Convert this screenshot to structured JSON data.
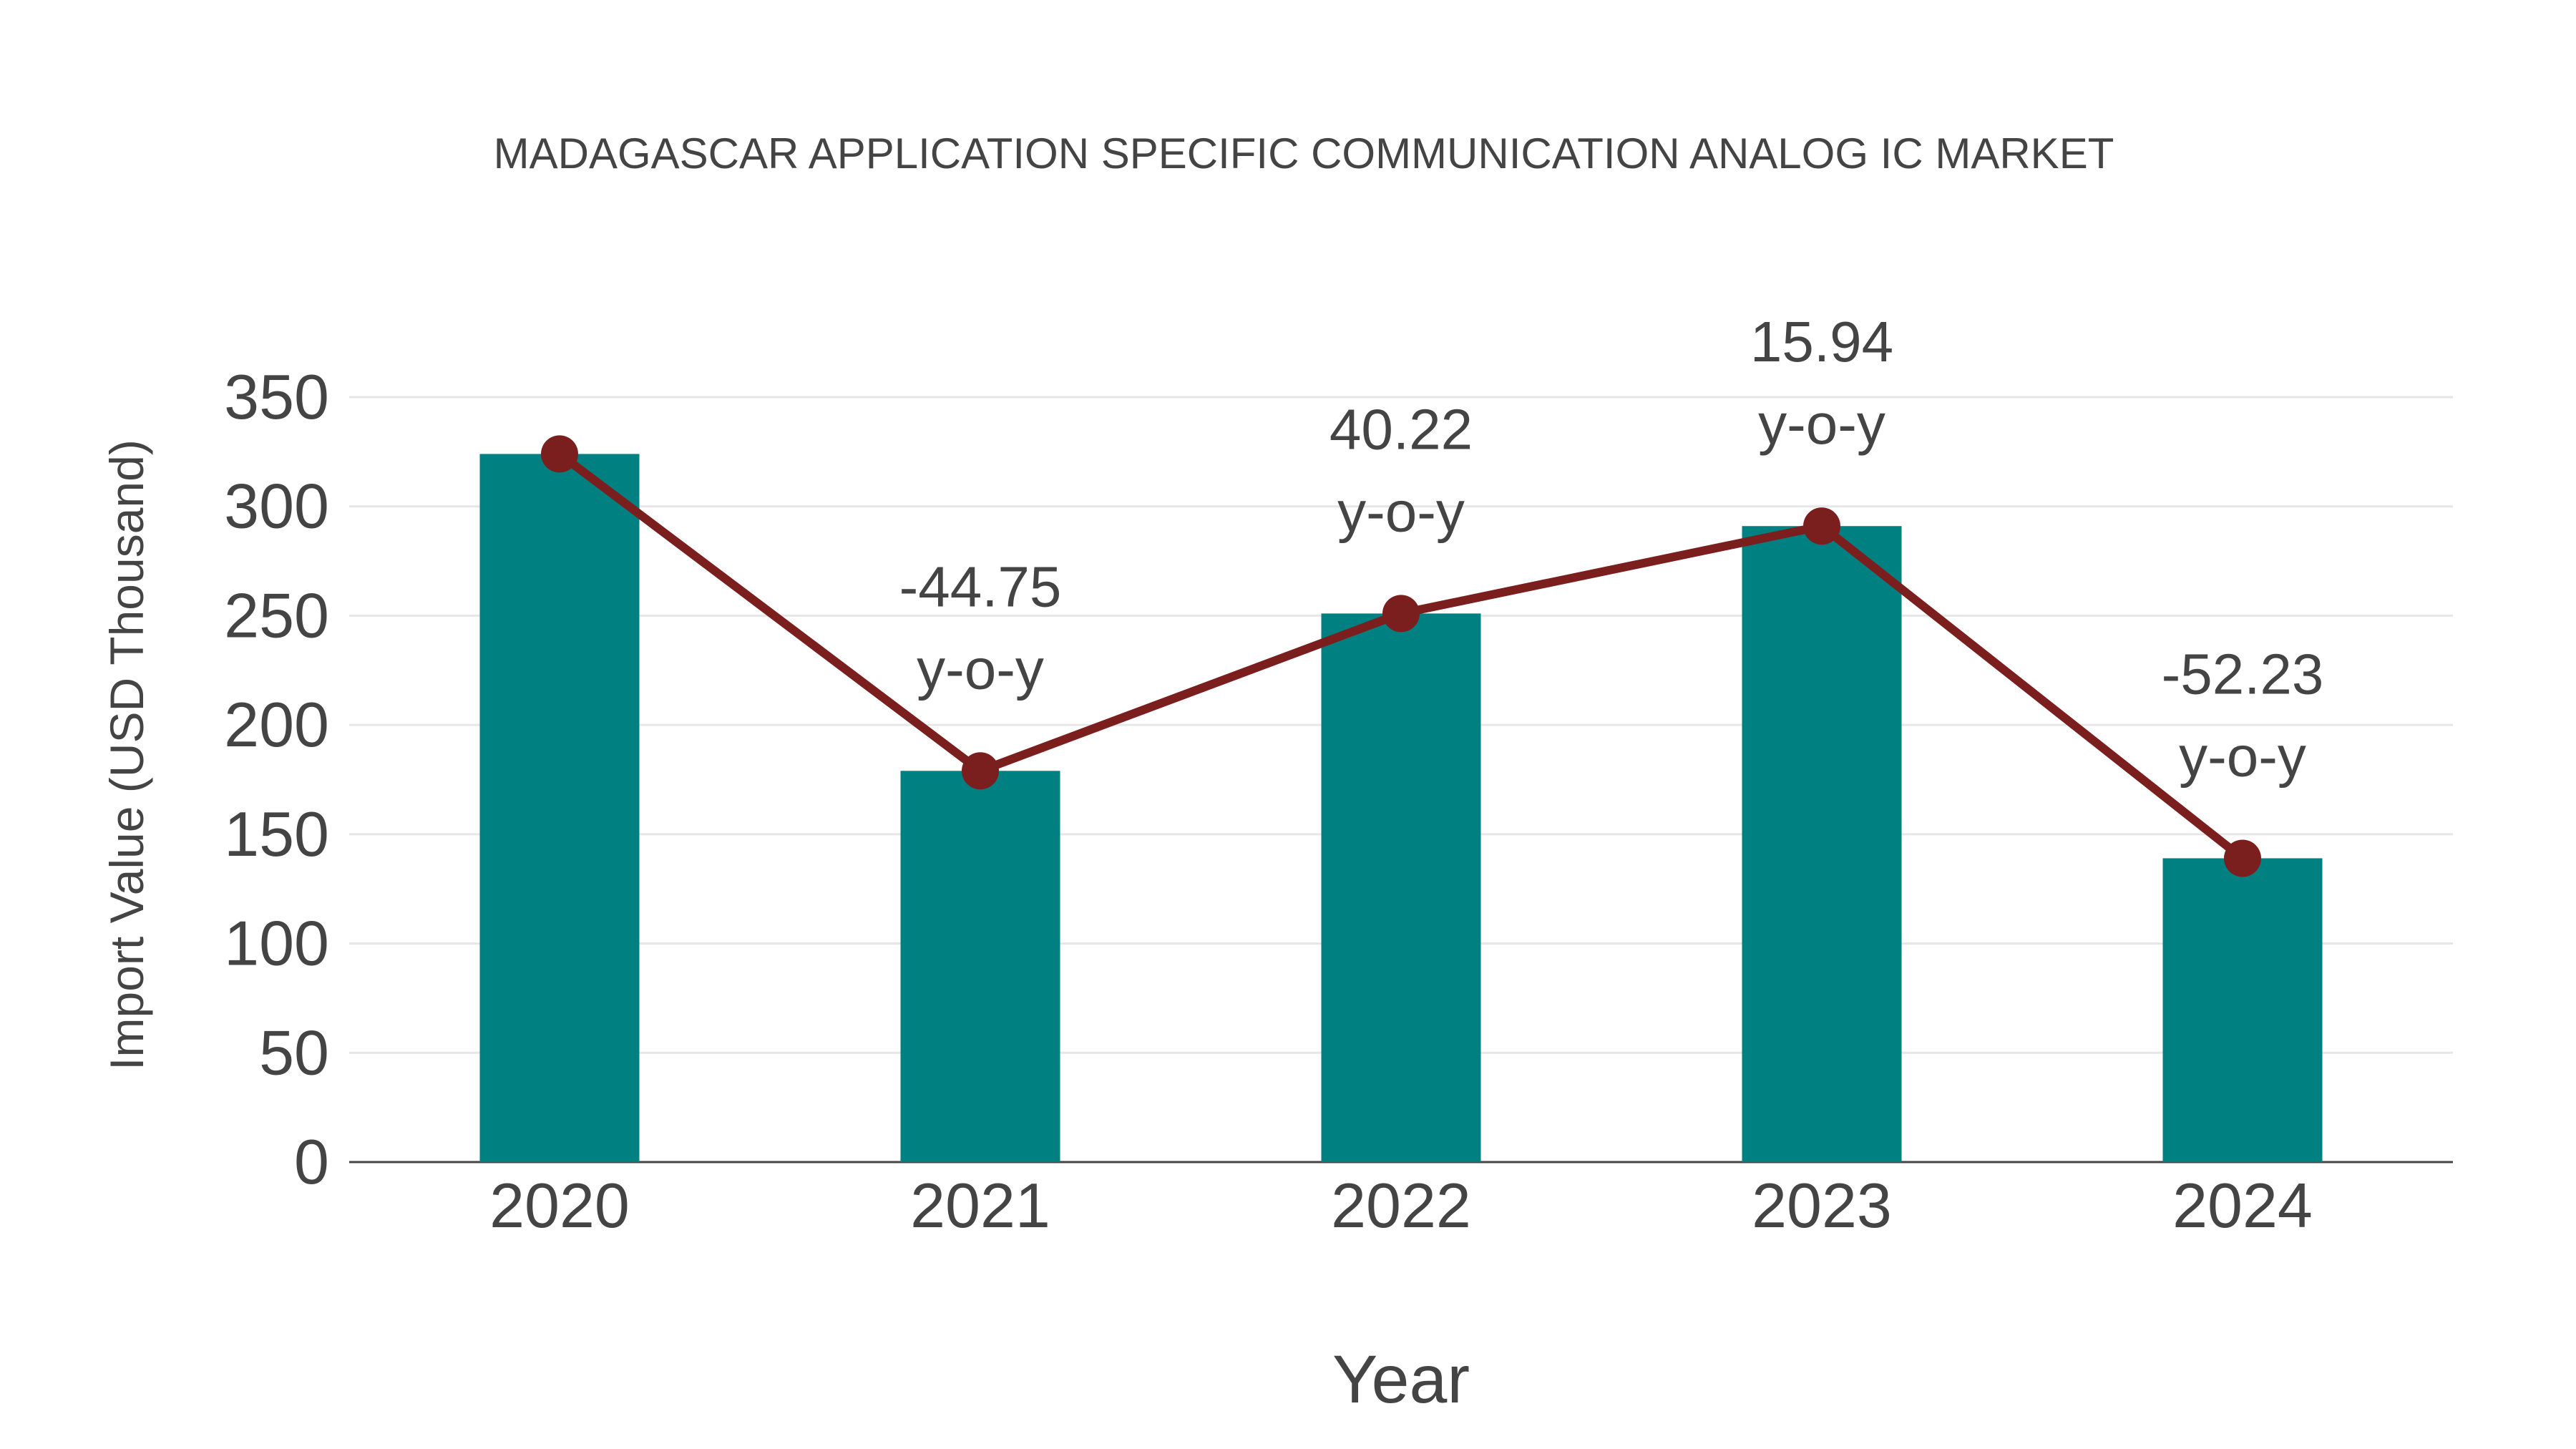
{
  "chart_data": {
    "type": "bar",
    "title": "MADAGASCAR APPLICATION SPECIFIC COMMUNICATION ANALOG IC MARKET",
    "xlabel": "Year",
    "ylabel": "Import Value (USD Thousand)",
    "categories": [
      "2020",
      "2021",
      "2022",
      "2023",
      "2024"
    ],
    "series": [
      {
        "name": "Import Value",
        "type": "bar",
        "values": [
          324,
          179,
          251,
          291,
          139
        ]
      },
      {
        "name": "Trend",
        "type": "line",
        "values": [
          324,
          179,
          251,
          291,
          139
        ]
      }
    ],
    "annotations": [
      null,
      {
        "value": "-44.75",
        "label": "y-o-y"
      },
      {
        "value": "40.22",
        "label": "y-o-y"
      },
      {
        "value": "15.94",
        "label": "y-o-y"
      },
      {
        "value": "-52.23",
        "label": "y-o-y"
      }
    ],
    "ylim": [
      0,
      350
    ],
    "yticks": [
      0,
      50,
      100,
      150,
      200,
      250,
      300,
      350
    ],
    "grid": true,
    "colors": {
      "bar": "#008080",
      "line": "#7b1e1e",
      "grid": "#e6e6e6",
      "axis": "#444444"
    }
  }
}
